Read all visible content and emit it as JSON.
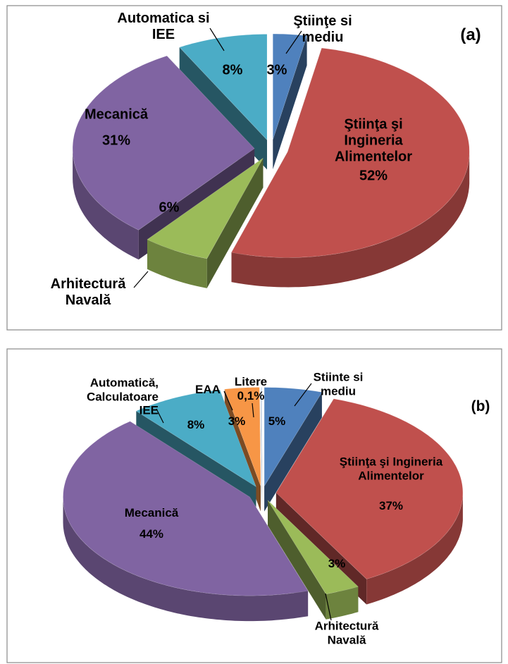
{
  "chart_data": [
    {
      "type": "pie",
      "title": "(a)",
      "categories": [
        "Ştiinţe si mediu",
        "Ştiinţa şi Ingineria Alimentelor",
        "Arhitectură Navală",
        "Mecanică",
        "Automatica si IEE"
      ],
      "values": [
        3,
        52,
        6,
        31,
        8
      ],
      "value_labels": [
        "3%",
        "52%",
        "6%",
        "31%",
        "8%"
      ],
      "colors": [
        "#4f81bd",
        "#c0504d",
        "#9bbb59",
        "#8064a2",
        "#4bacc6"
      ]
    },
    {
      "type": "pie",
      "title": "(b)",
      "categories": [
        "Stiinte si mediu",
        "Ştiinţa şi Ingineria Alimentelor",
        "Arhitectură Navală",
        "Mecanică",
        "Automatică, Calculatoare IEE",
        "EAA",
        "Litere"
      ],
      "values": [
        5,
        37,
        3,
        44,
        8,
        3,
        0.1
      ],
      "value_labels": [
        "5%",
        "37%",
        "3%",
        "44%",
        "8%",
        "3%",
        "0,1%"
      ],
      "colors": [
        "#4f81bd",
        "#c0504d",
        "#9bbb59",
        "#8064a2",
        "#4bacc6",
        "#f79646",
        "#c6d9f1"
      ]
    }
  ]
}
